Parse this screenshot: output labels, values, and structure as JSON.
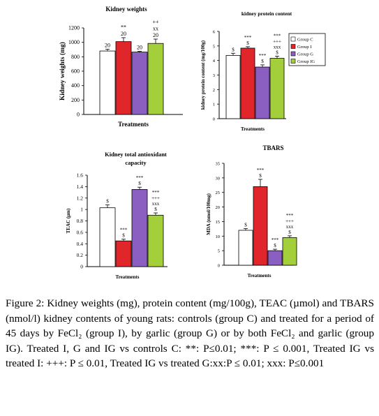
{
  "colors": {
    "Group C": "#ffffff",
    "Group I": "#e0262a",
    "Group G": "#8b5fc2",
    "Group IG": "#a3cf3a"
  },
  "legend": {
    "entries": [
      "Group C",
      "Group I",
      "Group G",
      "Group IG"
    ],
    "placement": "right of kidney protein content panel"
  },
  "chart_data": [
    {
      "type": "bar",
      "title": "Kidney weights",
      "xlabel": "Treatments",
      "ylabel": "Kidney weights (mg)",
      "ylim": [
        0,
        1200
      ],
      "yticks": [
        "0",
        "200",
        "400",
        "600",
        "800",
        "1000",
        "1200"
      ],
      "categories": [
        "Group C",
        "Group I",
        "Group G",
        "Group IG"
      ],
      "values": [
        880,
        1010,
        865,
        985
      ],
      "errors": [
        25,
        55,
        10,
        60
      ],
      "annotations": [
        [
          "20"
        ],
        [
          "20",
          "**"
        ],
        [
          "20"
        ],
        [
          "20",
          "xx",
          "++"
        ]
      ],
      "grid": false
    },
    {
      "type": "bar",
      "title": "kidney protein content",
      "xlabel": "Treatments",
      "ylabel": "kidney protein content (mg/100g)",
      "ylim": [
        0,
        6
      ],
      "yticks": [
        "0",
        "1",
        "2",
        "3",
        "4",
        "5",
        "6"
      ],
      "categories": [
        "Group C",
        "Group I",
        "Group G",
        "Group IG"
      ],
      "values": [
        4.35,
        4.85,
        3.55,
        4.15
      ],
      "errors": [
        0.15,
        0.1,
        0.15,
        0.15
      ],
      "annotations": [
        [
          "$"
        ],
        [
          "$",
          "***"
        ],
        [
          "$",
          "***"
        ],
        [
          "$",
          "xxx",
          "+++",
          "***"
        ]
      ],
      "grid": false
    },
    {
      "type": "bar",
      "title": "Kidney  total antioxidant capacity",
      "xlabel": "Treatments",
      "ylabel": "TEAC (µm)",
      "ylim": [
        0,
        1.6
      ],
      "yticks": [
        "0",
        "0.2",
        "0.4",
        "0.6",
        "0.8",
        "1",
        "1.2",
        "1.4",
        "1.6"
      ],
      "categories": [
        "Group C",
        "Group I",
        "Group G",
        "Group IG"
      ],
      "values": [
        1.03,
        0.45,
        1.35,
        0.9
      ],
      "errors": [
        0.05,
        0.03,
        0.04,
        0.04
      ],
      "annotations": [
        [
          "$"
        ],
        [
          "$",
          "***"
        ],
        [
          "$",
          "***"
        ],
        [
          "$",
          "xxx",
          "+++",
          "***"
        ]
      ],
      "grid": false
    },
    {
      "type": "bar",
      "title": "TBARS",
      "xlabel": "Treatments",
      "ylabel": "MDA (nmol/100mg)",
      "ylim": [
        0,
        35
      ],
      "yticks": [
        "0",
        "5",
        "10",
        "15",
        "20",
        "25",
        "30",
        "35"
      ],
      "categories": [
        "Group C",
        "Group I",
        "Group G",
        "Group IG"
      ],
      "values": [
        12,
        27,
        5,
        9.5
      ],
      "errors": [
        0.6,
        2.5,
        0.5,
        0.6
      ],
      "annotations": [
        [
          "$"
        ],
        [
          "$",
          "***"
        ],
        [
          "$",
          "***"
        ],
        [
          "$",
          "xxx",
          "+++",
          "***"
        ]
      ],
      "grid": false
    }
  ],
  "caption": {
    "lead": "Figure 2:",
    "text": " Kidney weights (mg), protein content (mg/100g), TEAC (µmol) and TBARS (nmol/l) kidney contents of young rats: controls (group C) and treated for a period of 45 days by FeCl₂ (group I), by garlic (group G) or by both FeCl₂ and garlic (group IG). Treated I, G and IG vs controls C: **: P≤0.01; ***: P ≤ 0.001, Treated IG vs treated I: +++: P ≤ 0.01, Treated IG vs treated G:xx:P ≤ 0.01; xxx: P≤0.001"
  }
}
